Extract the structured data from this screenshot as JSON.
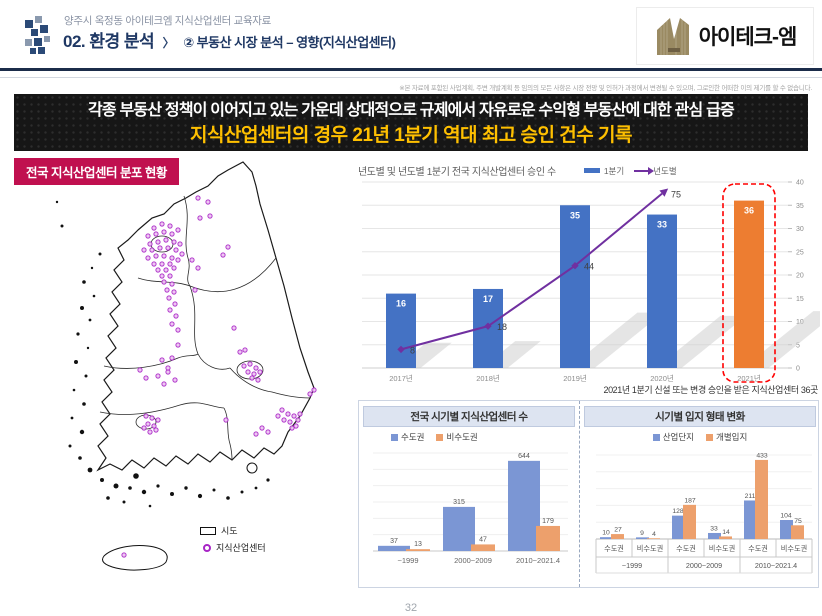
{
  "header": {
    "eyebrow": "양주시 옥정동 아이테크엠 지식산업센터 교육자료",
    "title_main": "02. 환경 분석",
    "separator": "〉",
    "subsection": "② 부동산 시장 분석 – 영향(지식산업센터)",
    "logo_text": "아이테크-엠",
    "disclaimer": "※본 자료에 포함된 사업계획, 주변 개발계획 등 임의의 모든 사항은 시장 전망 및 인허가 과정에서 변경될 수 있으며, 그로인한 어떠한 이의 제기를 할 수 없습니다."
  },
  "banner": {
    "line1": "각종 부동산 정책이 이어지고 있는 가운데 상대적으로 규제에서 자유로운 수익형 부동산에 대한 관심 급증",
    "line2": "지식산업센터의 경우 21년 1분기 역대 최고 승인 건수 기록",
    "line1_color": "#ffffff",
    "line2_color": "#ffc000",
    "background": "#161616"
  },
  "map": {
    "title": "전국 지식산업센터 분포 현황",
    "title_bg": "#c0104f",
    "legend": [
      {
        "label": "시도",
        "marker": "rect-outline"
      },
      {
        "label": "지식산업센터",
        "marker": "purple-circle"
      }
    ],
    "dot_color": "#a825c6",
    "dots": [
      [
        142,
        70
      ],
      [
        150,
        66
      ],
      [
        158,
        68
      ],
      [
        136,
        78
      ],
      [
        144,
        76
      ],
      [
        152,
        74
      ],
      [
        160,
        76
      ],
      [
        166,
        72
      ],
      [
        138,
        86
      ],
      [
        146,
        84
      ],
      [
        154,
        82
      ],
      [
        162,
        84
      ],
      [
        168,
        86
      ],
      [
        132,
        92
      ],
      [
        140,
        92
      ],
      [
        148,
        90
      ],
      [
        156,
        90
      ],
      [
        164,
        92
      ],
      [
        170,
        96
      ],
      [
        136,
        100
      ],
      [
        144,
        98
      ],
      [
        152,
        98
      ],
      [
        160,
        100
      ],
      [
        166,
        102
      ],
      [
        142,
        106
      ],
      [
        150,
        106
      ],
      [
        158,
        106
      ],
      [
        146,
        112
      ],
      [
        154,
        112
      ],
      [
        162,
        110
      ],
      [
        150,
        118
      ],
      [
        158,
        118
      ],
      [
        152,
        124
      ],
      [
        160,
        126
      ],
      [
        155,
        132
      ],
      [
        162,
        134
      ],
      [
        157,
        140
      ],
      [
        163,
        146
      ],
      [
        158,
        152
      ],
      [
        164,
        158
      ],
      [
        160,
        166
      ],
      [
        166,
        172
      ],
      [
        186,
        40
      ],
      [
        196,
        44
      ],
      [
        198,
        58
      ],
      [
        188,
        60
      ],
      [
        216,
        89
      ],
      [
        211,
        97
      ],
      [
        180,
        102
      ],
      [
        186,
        110
      ],
      [
        183,
        132
      ],
      [
        166,
        187
      ],
      [
        160,
        200
      ],
      [
        156,
        214
      ],
      [
        163,
        222
      ],
      [
        150,
        202
      ],
      [
        156,
        210
      ],
      [
        146,
        218
      ],
      [
        152,
        226
      ],
      [
        134,
        258
      ],
      [
        140,
        260
      ],
      [
        146,
        262
      ],
      [
        136,
        266
      ],
      [
        142,
        268
      ],
      [
        138,
        274
      ],
      [
        144,
        272
      ],
      [
        132,
        270
      ],
      [
        232,
        208
      ],
      [
        238,
        206
      ],
      [
        244,
        210
      ],
      [
        236,
        214
      ],
      [
        242,
        216
      ],
      [
        248,
        214
      ],
      [
        240,
        220
      ],
      [
        246,
        222
      ],
      [
        228,
        194
      ],
      [
        233,
        192
      ],
      [
        222,
        170
      ],
      [
        298,
        236
      ],
      [
        302,
        232
      ],
      [
        270,
        252
      ],
      [
        276,
        256
      ],
      [
        282,
        258
      ],
      [
        286,
        262
      ],
      [
        278,
        264
      ],
      [
        272,
        262
      ],
      [
        284,
        268
      ],
      [
        288,
        256
      ],
      [
        266,
        258
      ],
      [
        280,
        270
      ],
      [
        250,
        270
      ],
      [
        256,
        274
      ],
      [
        244,
        276
      ],
      [
        214,
        262
      ],
      [
        128,
        212
      ],
      [
        134,
        220
      ],
      [
        112,
        397
      ]
    ]
  },
  "chart_data": [
    {
      "id": "approvals",
      "type": "combo-bar-line",
      "title": "년도별 및 년도별 1분기 전국 지식산업센터 승인 수",
      "categories": [
        "2017년",
        "2018년",
        "2019년",
        "2020년",
        "2021년"
      ],
      "series": [
        {
          "name": "1분기",
          "type": "bar",
          "axis": "right",
          "values": [
            16,
            17,
            35,
            33,
            36
          ],
          "colors": [
            "#4472c4",
            "#4472c4",
            "#4472c4",
            "#4472c4",
            "#ed7d31"
          ]
        },
        {
          "name": "년도별",
          "type": "line",
          "axis": "left-hidden",
          "values": [
            8,
            18,
            44,
            75,
            null
          ],
          "color": "#7030a0"
        }
      ],
      "right_axis": {
        "min": 0,
        "max": 40,
        "step": 5
      },
      "line_axis": {
        "min": 0,
        "max": 80
      },
      "grid": true,
      "legend_position": "top",
      "highlight": {
        "category": "2021년",
        "style": "red-dashed-box",
        "color": "#ff0000"
      },
      "note": "2021년 1분기 신설 또는 변경 승인을 받은 지식산업센터 36곳"
    },
    {
      "id": "centers-by-period",
      "type": "bar",
      "title": "전국 시기별 지식산업센터 수",
      "categories": [
        "~1999",
        "2000~2009",
        "2010~2021.4"
      ],
      "series": [
        {
          "name": "수도권",
          "color": "#7b96d4",
          "values": [
            37,
            315,
            644
          ]
        },
        {
          "name": "비수도권",
          "color": "#eda06c",
          "values": [
            13,
            47,
            179
          ]
        }
      ],
      "ylim": [
        0,
        700
      ],
      "grid": true,
      "legend_position": "top-left"
    },
    {
      "id": "location-type-change",
      "type": "grouped-bar",
      "title": "시기별 입지 형태 변화",
      "group_categories": [
        "~1999",
        "2000~2009",
        "2010~2021.4"
      ],
      "sub_categories": [
        "수도권",
        "비수도권",
        "수도권",
        "비수도권",
        "수도권",
        "비수도권"
      ],
      "series": [
        {
          "name": "산업단지",
          "color": "#7b96d4",
          "values": [
            10,
            9,
            128,
            33,
            211,
            104
          ]
        },
        {
          "name": "개별입지",
          "color": "#eda06c",
          "values": [
            27,
            4,
            187,
            14,
            433,
            75
          ]
        }
      ],
      "ylim": [
        0,
        460
      ],
      "grid": true,
      "legend_position": "top"
    }
  ],
  "footer": {
    "page_number": "32"
  }
}
